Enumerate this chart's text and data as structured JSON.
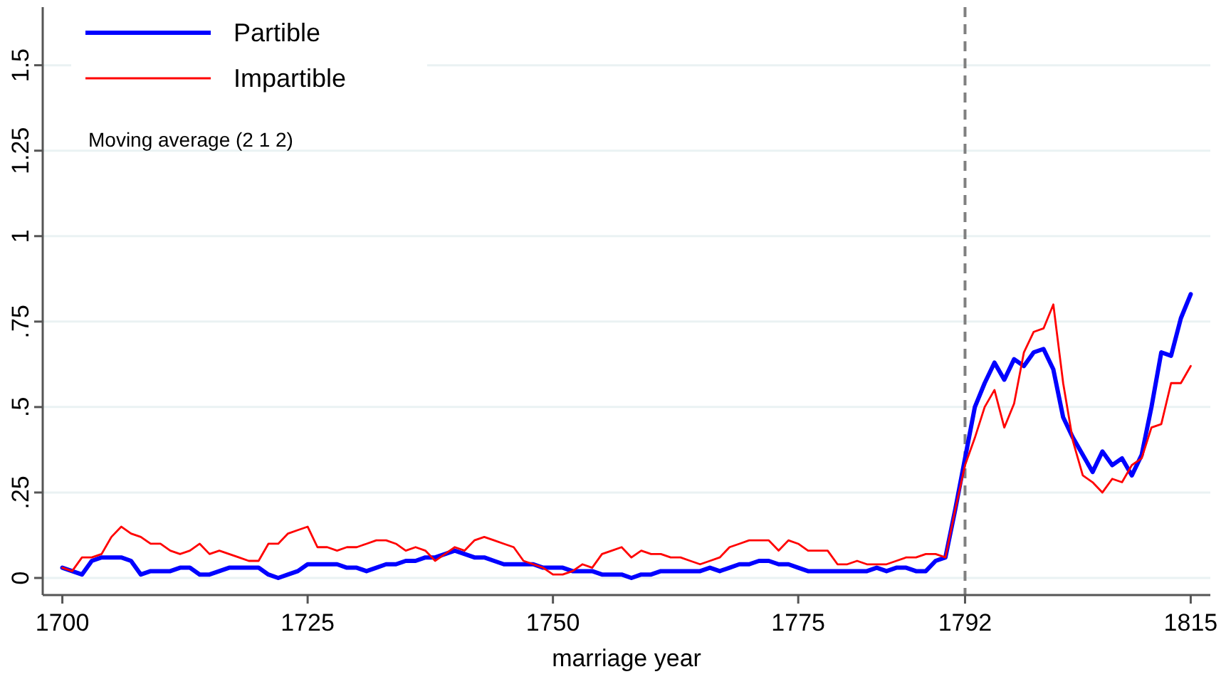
{
  "chart_data": {
    "type": "line",
    "xlabel": "marriage year",
    "annotations": [
      "Moving average (2 1 2)"
    ],
    "x": [
      1700,
      1701,
      1702,
      1703,
      1704,
      1705,
      1706,
      1707,
      1708,
      1709,
      1710,
      1711,
      1712,
      1713,
      1714,
      1715,
      1716,
      1717,
      1718,
      1719,
      1720,
      1721,
      1722,
      1723,
      1724,
      1725,
      1726,
      1727,
      1728,
      1729,
      1730,
      1731,
      1732,
      1733,
      1734,
      1735,
      1736,
      1737,
      1738,
      1739,
      1740,
      1741,
      1742,
      1743,
      1744,
      1745,
      1746,
      1747,
      1748,
      1749,
      1750,
      1751,
      1752,
      1753,
      1754,
      1755,
      1756,
      1757,
      1758,
      1759,
      1760,
      1761,
      1762,
      1763,
      1764,
      1765,
      1766,
      1767,
      1768,
      1769,
      1770,
      1771,
      1772,
      1773,
      1774,
      1775,
      1776,
      1777,
      1778,
      1779,
      1780,
      1781,
      1782,
      1783,
      1784,
      1785,
      1786,
      1787,
      1788,
      1789,
      1790,
      1791,
      1792,
      1793,
      1794,
      1795,
      1796,
      1797,
      1798,
      1799,
      1800,
      1801,
      1802,
      1803,
      1804,
      1805,
      1806,
      1807,
      1808,
      1809,
      1810,
      1811,
      1812,
      1813,
      1814,
      1815
    ],
    "series": [
      {
        "name": "Partible",
        "color": "#0000ff",
        "values": [
          0.03,
          0.02,
          0.01,
          0.05,
          0.06,
          0.06,
          0.06,
          0.05,
          0.01,
          0.02,
          0.02,
          0.02,
          0.03,
          0.03,
          0.01,
          0.01,
          0.02,
          0.03,
          0.03,
          0.03,
          0.03,
          0.01,
          0,
          0.01,
          0.02,
          0.04,
          0.04,
          0.04,
          0.04,
          0.03,
          0.03,
          0.02,
          0.03,
          0.04,
          0.04,
          0.05,
          0.05,
          0.06,
          0.06,
          0.07,
          0.08,
          0.07,
          0.06,
          0.06,
          0.05,
          0.04,
          0.04,
          0.04,
          0.04,
          0.03,
          0.03,
          0.03,
          0.02,
          0.02,
          0.02,
          0.01,
          0.01,
          0.01,
          0,
          0.01,
          0.01,
          0.02,
          0.02,
          0.02,
          0.02,
          0.02,
          0.03,
          0.02,
          0.03,
          0.04,
          0.04,
          0.05,
          0.05,
          0.04,
          0.04,
          0.03,
          0.02,
          0.02,
          0.02,
          0.02,
          0.02,
          0.02,
          0.02,
          0.03,
          0.02,
          0.03,
          0.03,
          0.02,
          0.02,
          0.05,
          0.06,
          0.2,
          0.35,
          0.5,
          0.57,
          0.63,
          0.58,
          0.64,
          0.62,
          0.66,
          0.67,
          0.61,
          0.47,
          0.41,
          0.36,
          0.31,
          0.37,
          0.33,
          0.35,
          0.3,
          0.36,
          0.5,
          0.66,
          0.65,
          0.76,
          0.83
        ]
      },
      {
        "name": "Impartible",
        "color": "#ff0000",
        "values": [
          0.03,
          0.02,
          0.06,
          0.06,
          0.07,
          0.12,
          0.15,
          0.13,
          0.12,
          0.1,
          0.1,
          0.08,
          0.07,
          0.08,
          0.1,
          0.07,
          0.08,
          0.07,
          0.06,
          0.05,
          0.05,
          0.1,
          0.1,
          0.13,
          0.14,
          0.15,
          0.09,
          0.09,
          0.08,
          0.09,
          0.09,
          0.1,
          0.11,
          0.11,
          0.1,
          0.08,
          0.09,
          0.08,
          0.05,
          0.07,
          0.09,
          0.08,
          0.11,
          0.12,
          0.11,
          0.1,
          0.09,
          0.05,
          0.04,
          0.03,
          0.01,
          0.01,
          0.02,
          0.04,
          0.03,
          0.07,
          0.08,
          0.09,
          0.06,
          0.08,
          0.07,
          0.07,
          0.06,
          0.06,
          0.05,
          0.04,
          0.05,
          0.06,
          0.09,
          0.1,
          0.11,
          0.11,
          0.11,
          0.08,
          0.11,
          0.1,
          0.08,
          0.08,
          0.08,
          0.04,
          0.04,
          0.05,
          0.04,
          0.04,
          0.04,
          0.05,
          0.06,
          0.06,
          0.07,
          0.07,
          0.06,
          0.2,
          0.33,
          0.41,
          0.5,
          0.55,
          0.44,
          0.51,
          0.66,
          0.72,
          0.73,
          0.8,
          0.57,
          0.4,
          0.3,
          0.28,
          0.25,
          0.29,
          0.28,
          0.33,
          0.35,
          0.44,
          0.45,
          0.57,
          0.57,
          0.62
        ]
      }
    ],
    "xlim": [
      1698,
      1817
    ],
    "ylim": [
      -0.05,
      1.67
    ],
    "xticks": [
      1700,
      1725,
      1750,
      1775,
      1792,
      1815
    ],
    "yticks": [
      0,
      {
        "value": 0.25,
        "label": ".25"
      },
      {
        "value": 0.5,
        "label": ".5"
      },
      {
        "value": 0.75,
        "label": ".75"
      },
      1,
      1.25,
      1.5
    ],
    "ref_lines": [
      {
        "axis": "x",
        "value": 1792,
        "color": "#808080",
        "line_style": "dashed"
      }
    ],
    "grid": "y",
    "legend": "top left",
    "line_style": "solid"
  }
}
